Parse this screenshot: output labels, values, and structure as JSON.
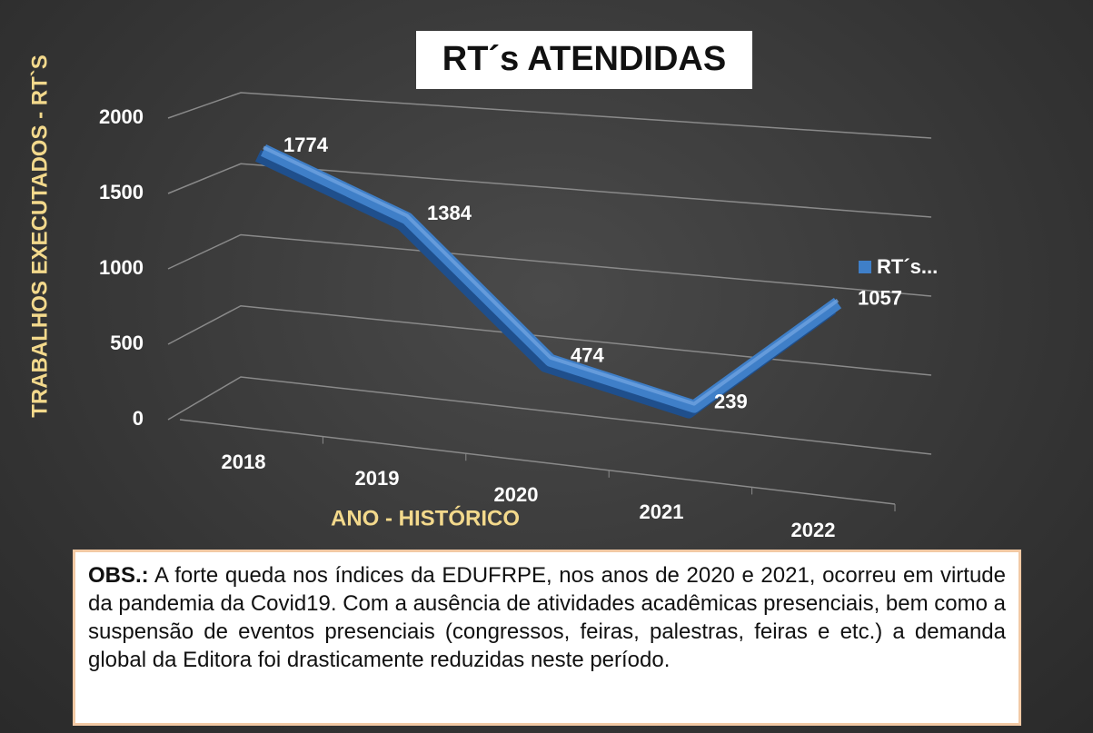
{
  "chart_data": {
    "type": "line",
    "title": "RT´s ATENDIDAS",
    "y_label": "TRABALHOS EXECUTADOS - RT`S",
    "x_label": "ANO - HISTÓRICO",
    "categories": [
      "2018",
      "2019",
      "2020",
      "2021",
      "2022"
    ],
    "series": [
      {
        "name": "RT´s...",
        "color": "#3f7fc8",
        "values": [
          1774,
          1384,
          474,
          239,
          1057
        ]
      }
    ],
    "ylim": [
      0,
      2000
    ],
    "yticks": [
      0,
      500,
      1000,
      1500,
      2000
    ],
    "grid": true,
    "legend": "right"
  },
  "note": {
    "label": "OBS.:",
    "text": "A forte queda nos índices da EDUFRPE, nos anos de 2020 e 2021, ocorreu em virtude da pandemia da Covid19. Com a ausência de atividades acadêmicas presenciais, bem como a suspensão de eventos presenciais (congressos, feiras, palestras, feiras e etc.) a demanda global da Editora foi drasticamente reduzidas neste período."
  }
}
